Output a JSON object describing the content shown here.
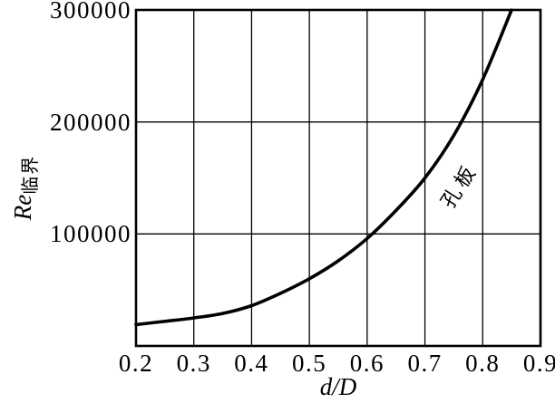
{
  "chart_data": {
    "type": "line",
    "title": "",
    "xlabel": "d/D",
    "ylabel": "Re临界",
    "ylabel_main": "Re",
    "ylabel_sub": "临界",
    "xlim": [
      0.2,
      0.9
    ],
    "ylim": [
      0,
      300000
    ],
    "x_ticks": [
      0.2,
      0.3,
      0.4,
      0.5,
      0.6,
      0.7,
      0.8,
      0.9
    ],
    "x_tick_labels": [
      "0.2",
      "0.3",
      "0.4",
      "0.5",
      "0.6",
      "0.7",
      "0.8",
      "0.9"
    ],
    "y_ticks": [
      100000,
      200000,
      300000
    ],
    "y_tick_labels": [
      "100000",
      "200000",
      "300000"
    ],
    "grid": true,
    "legend_position": "none",
    "series": [
      {
        "name": "孔板",
        "label": "孔板",
        "label_rotation_deg": -57,
        "color": "#000000",
        "x": [
          0.2,
          0.25,
          0.3,
          0.35,
          0.4,
          0.45,
          0.5,
          0.55,
          0.6,
          0.65,
          0.7,
          0.75,
          0.8,
          0.85
        ],
        "y": [
          19000,
          22000,
          25000,
          29000,
          36000,
          47000,
          60000,
          76000,
          96000,
          121000,
          150000,
          188000,
          238000,
          300000
        ]
      }
    ]
  },
  "colors": {
    "background": "#ffffff",
    "axis": "#000000",
    "grid": "#000000",
    "curve": "#000000"
  }
}
